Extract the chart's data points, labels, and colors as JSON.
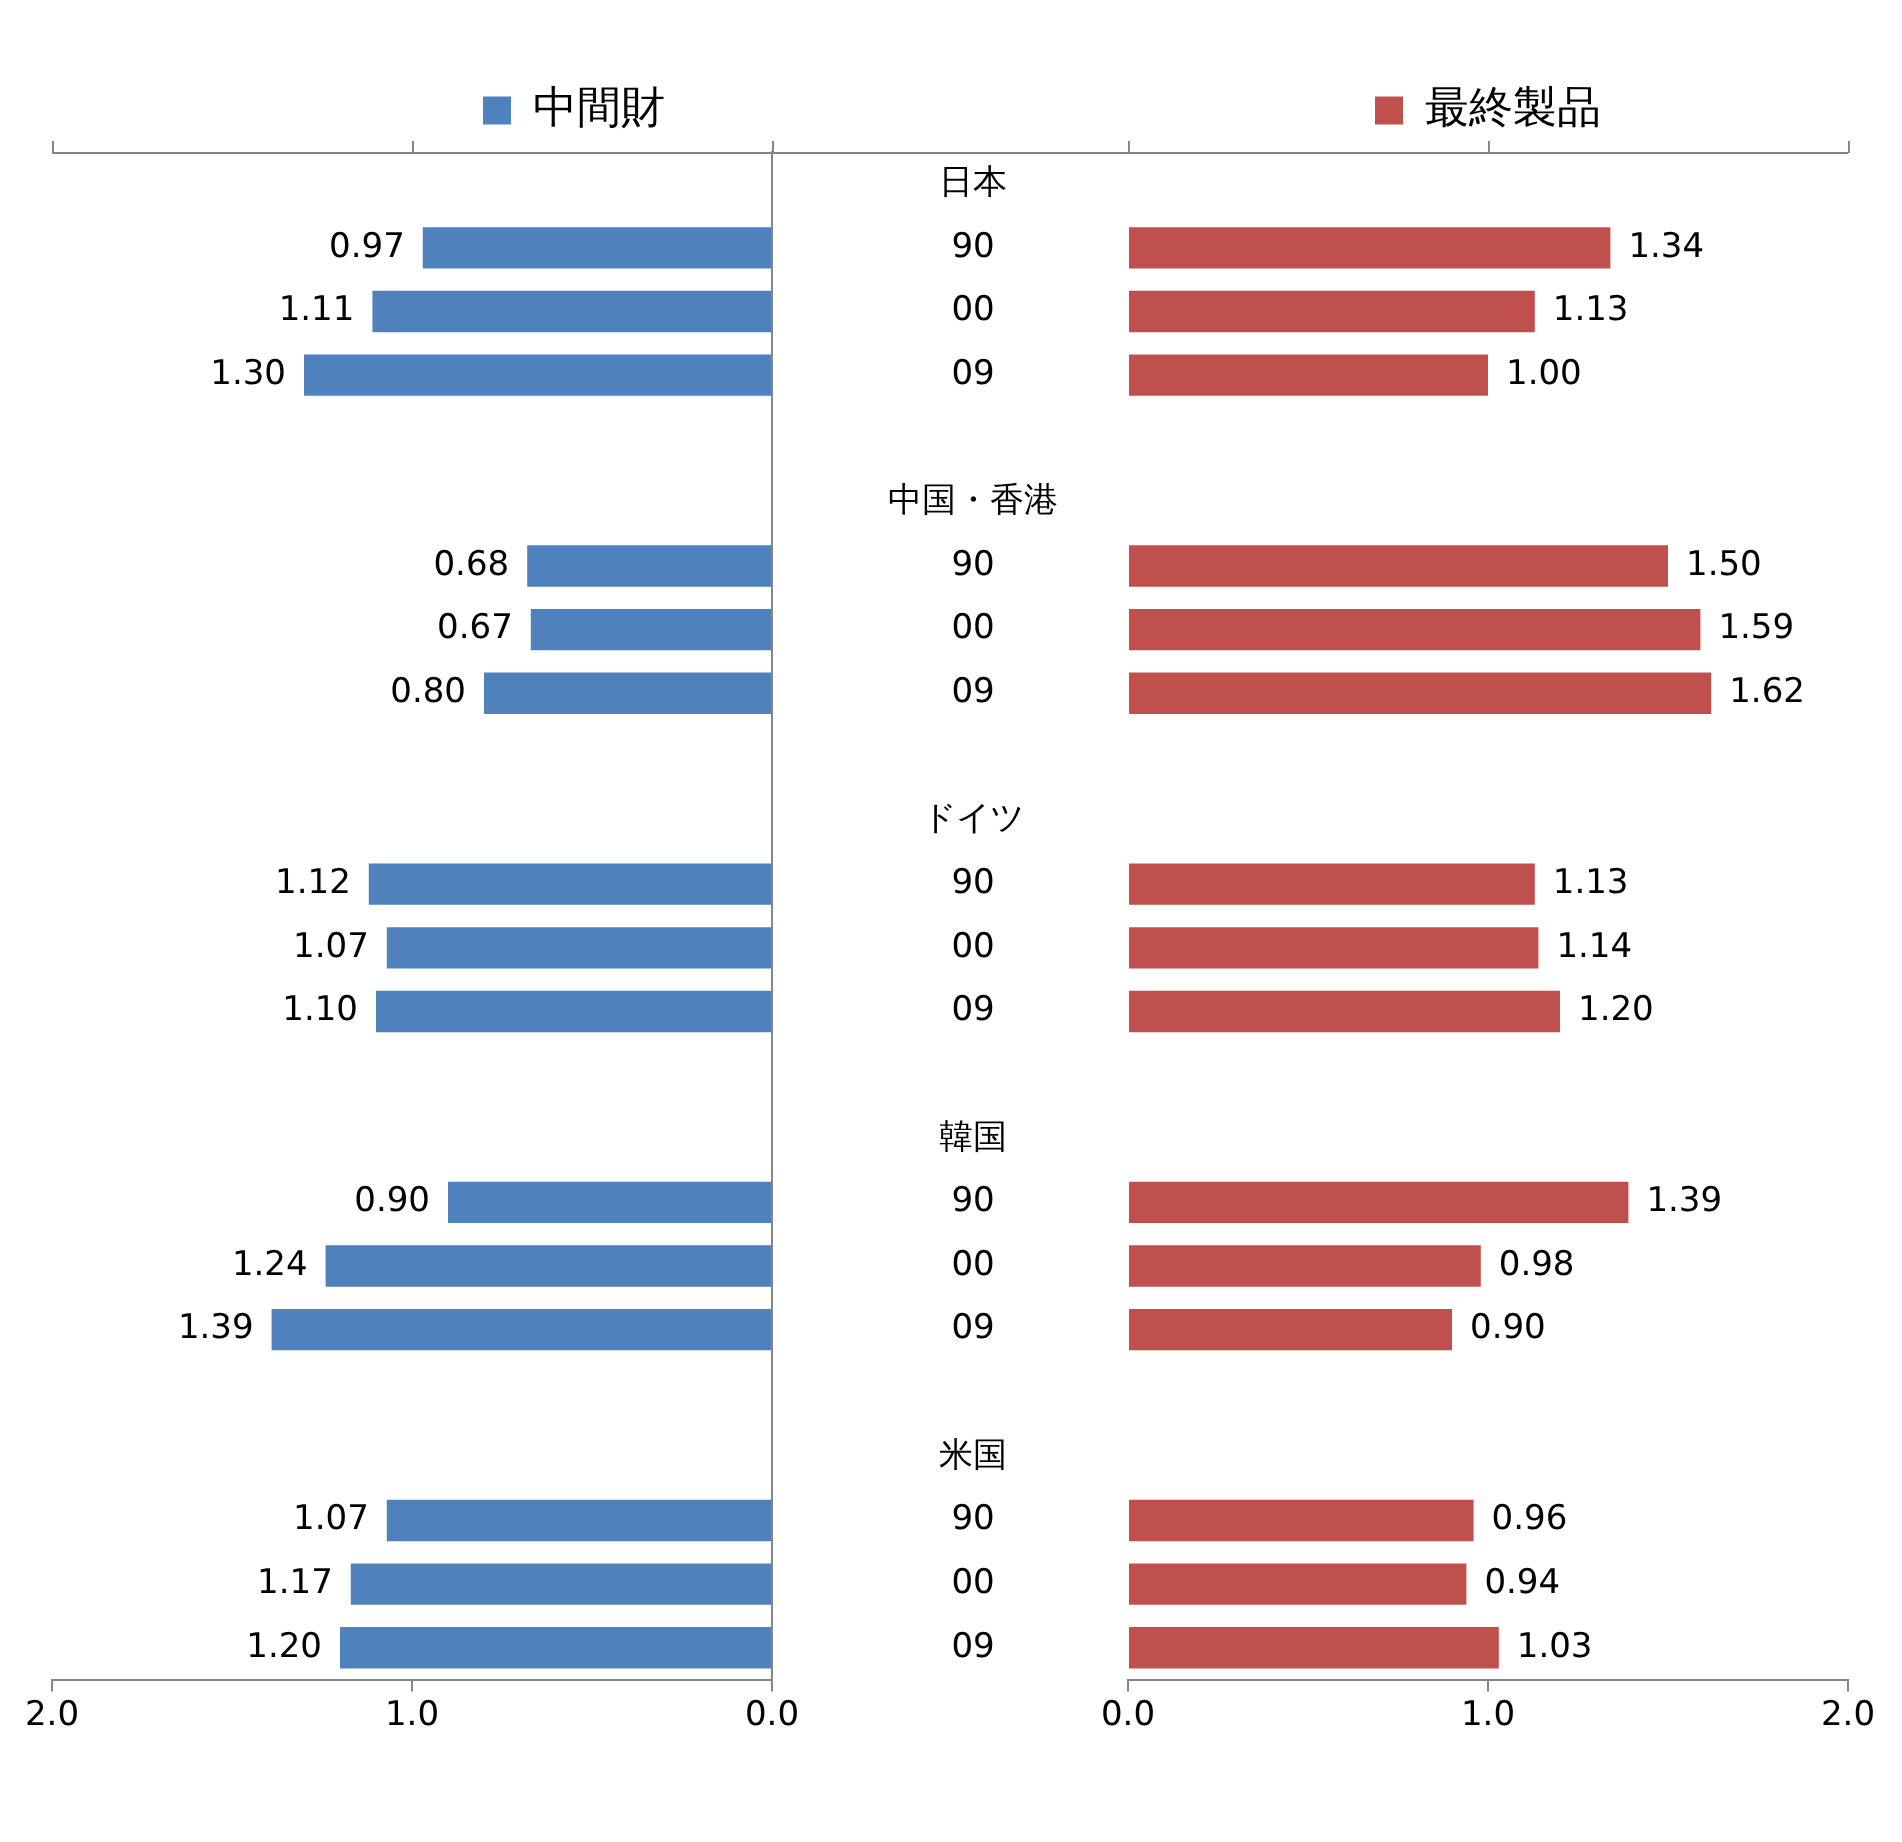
{
  "chart_data": [
    {
      "type": "bar",
      "orientation": "horizontal",
      "legend": "top",
      "categories": [
        "日本",
        "90",
        "00",
        "09",
        null,
        "中国・香港",
        "90",
        "00",
        "09",
        null,
        "ドイツ",
        "90",
        "00",
        "09",
        null,
        "韓国",
        "90",
        "00",
        "09",
        null,
        "米国",
        "90",
        "00",
        "09"
      ],
      "series": [
        {
          "name": "中間財",
          "color": "#4f81bd",
          "values": [
            null,
            0.97,
            1.11,
            1.3,
            null,
            null,
            0.68,
            0.67,
            0.8,
            null,
            null,
            1.12,
            1.07,
            1.1,
            null,
            null,
            0.9,
            1.24,
            1.39,
            null,
            null,
            1.07,
            1.17,
            1.2
          ],
          "value_labels": [
            null,
            "0.97",
            "1.11",
            "1.30",
            null,
            null,
            "0.68",
            "0.67",
            "0.80",
            null,
            null,
            "1.12",
            "1.07",
            "1.10",
            null,
            null,
            "0.90",
            "1.24",
            "1.39",
            null,
            null,
            "1.07",
            "1.17",
            "1.20"
          ]
        }
      ],
      "xlim": [
        2,
        0
      ],
      "xticks": [
        {
          "value": 2,
          "label": "2.0"
        },
        {
          "value": 1,
          "label": "1.0"
        },
        {
          "value": 0,
          "label": "0.0"
        }
      ]
    },
    {
      "type": "bar",
      "orientation": "horizontal",
      "legend": "top",
      "categories": [
        null,
        null,
        null,
        null,
        null,
        null,
        null,
        null,
        null,
        null,
        null,
        null,
        null,
        null,
        null,
        null,
        null,
        null,
        null,
        null,
        null,
        null,
        null,
        null
      ],
      "series": [
        {
          "name": "最終製品",
          "color": "#c0504d",
          "values": [
            null,
            1.34,
            1.13,
            1.0,
            null,
            null,
            1.5,
            1.59,
            1.62,
            null,
            null,
            1.13,
            1.14,
            1.2,
            null,
            null,
            1.39,
            0.98,
            0.9,
            null,
            null,
            0.96,
            0.94,
            1.03
          ],
          "value_labels": [
            null,
            "1.34",
            "1.13",
            "1.00",
            null,
            null,
            "1.50",
            "1.59",
            "1.62",
            null,
            null,
            "1.13",
            "1.14",
            "1.20",
            null,
            null,
            "1.39",
            "0.98",
            "0.90",
            null,
            null,
            "0.96",
            "0.94",
            "1.03"
          ]
        }
      ],
      "xlim": [
        0,
        2
      ],
      "xticks": [
        {
          "value": 0,
          "label": "0.0"
        },
        {
          "value": 1,
          "label": "1.0"
        },
        {
          "value": 2,
          "label": "2.0"
        }
      ]
    }
  ]
}
